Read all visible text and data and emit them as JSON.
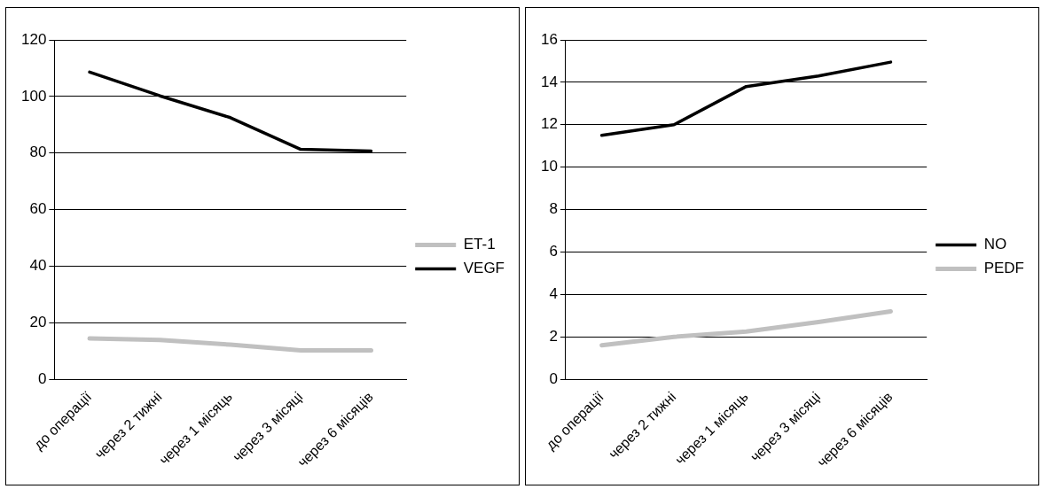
{
  "chart_data": [
    {
      "type": "line",
      "categories": [
        "до операції",
        "через 2 тижні",
        "через 1 місяць",
        "через 3 місяці",
        "через 6 місяців"
      ],
      "series": [
        {
          "name": "ET-1",
          "color": "#c0c0c0",
          "values": [
            14.4,
            13.9,
            12.2,
            10.2,
            10.2
          ]
        },
        {
          "name": "VEGF",
          "color": "#000000",
          "values": [
            108.6,
            100.2,
            92.5,
            81.3,
            80.7
          ]
        }
      ],
      "ylim": [
        0,
        120
      ],
      "yticks": [
        0,
        20,
        40,
        60,
        80,
        100,
        120
      ],
      "grid": "y",
      "legend": "right",
      "marker": "none"
    },
    {
      "type": "line",
      "categories": [
        "до операції",
        "через 2 тижні",
        "через 1 місяць",
        "через 3 місяці",
        "через 6 місяців"
      ],
      "series": [
        {
          "name": "NO",
          "color": "#000000",
          "values": [
            11.5,
            12.0,
            13.8,
            14.3,
            14.95
          ]
        },
        {
          "name": "PEDF",
          "color": "#c0c0c0",
          "values": [
            1.6,
            2.0,
            2.25,
            2.7,
            3.2
          ]
        }
      ],
      "ylim": [
        0,
        16
      ],
      "yticks": [
        0,
        2,
        4,
        6,
        8,
        10,
        12,
        14,
        16
      ],
      "grid": "y",
      "legend": "right",
      "marker": "none"
    }
  ]
}
